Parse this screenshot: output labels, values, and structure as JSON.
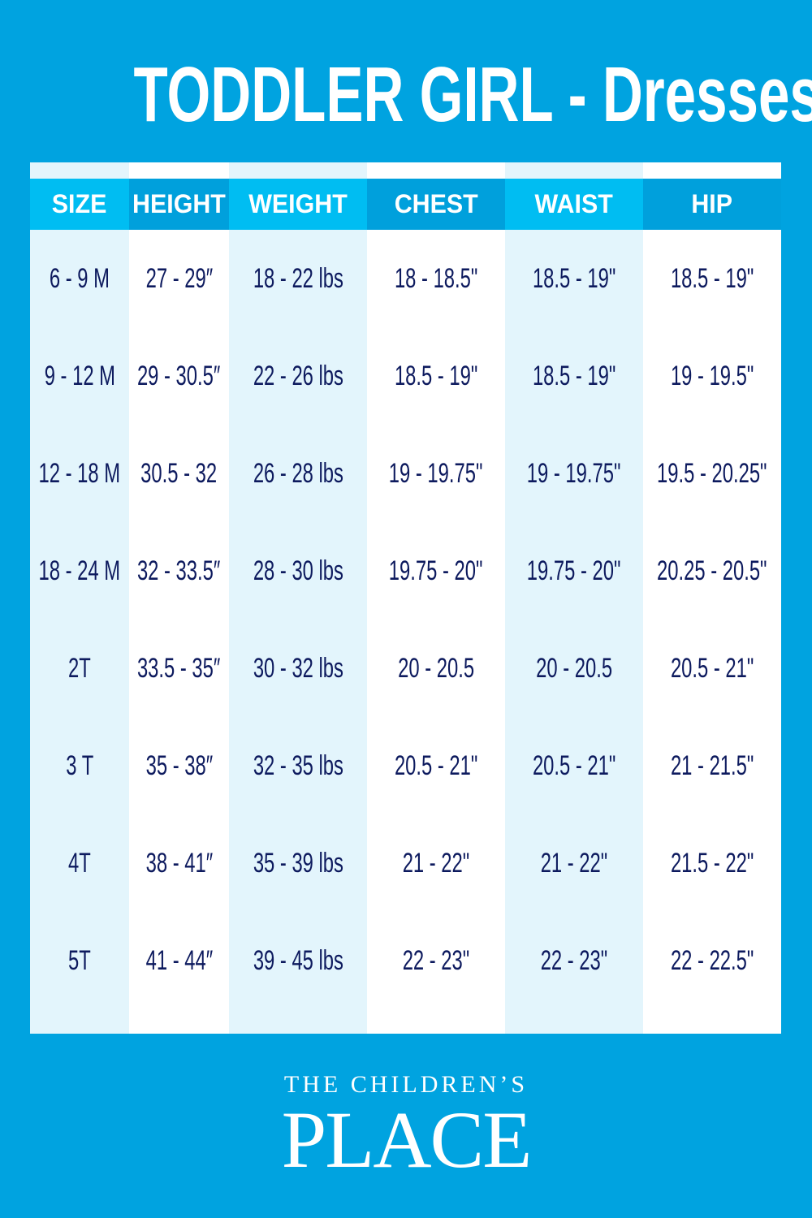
{
  "title": "TODDLER GIRL - Dresses",
  "colors": {
    "background": "#00a3e0",
    "header_light": "#00bdf2",
    "header_dark": "#00a0dc",
    "row_alt": "#e3f5fc",
    "text": "#0d1a5e"
  },
  "table": {
    "headers": [
      "SIZE",
      "HEIGHT",
      "WEIGHT",
      "CHEST",
      "WAIST",
      "HIP"
    ],
    "columns": [
      [
        "6 - 9 M",
        "9 - 12 M",
        "12 - 18 M",
        "18 - 24 M",
        "2T",
        "3 T",
        "4T",
        "5T"
      ],
      [
        "27 - 29″",
        "29 - 30.5″",
        "30.5 - 32",
        "32 - 33.5″",
        "33.5 - 35″",
        "35 - 38″",
        "38 - 41″",
        "41  - 44″"
      ],
      [
        "18 - 22 lbs",
        "22 - 26 lbs",
        "26 - 28 lbs",
        "28 - 30 lbs",
        "30 - 32 lbs",
        "32 - 35 lbs",
        "35 - 39 lbs",
        "39 - 45 lbs"
      ],
      [
        "18 - 18.5\"",
        "18.5 - 19\"",
        "19 - 19.75\"",
        "19.75 - 20\"",
        "20 - 20.5",
        "20.5 - 21\"",
        "21 - 22\"",
        "22 - 23\""
      ],
      [
        "18.5 - 19\"",
        "18.5 - 19\"",
        "19 - 19.75\"",
        "19.75 - 20\"",
        "20 - 20.5",
        "20.5 - 21\"",
        "21 - 22\"",
        "22 - 23\""
      ],
      [
        "18.5 - 19\"",
        "19 - 19.5\"",
        "19.5 - 20.25\"",
        "20.25 - 20.5\"",
        "20.5 - 21\"",
        "21 - 21.5\"",
        "21.5 - 22\"",
        "22 - 22.5\""
      ]
    ]
  },
  "logo": {
    "line1": "THE CHILDREN’S",
    "line2": "PLACE"
  }
}
